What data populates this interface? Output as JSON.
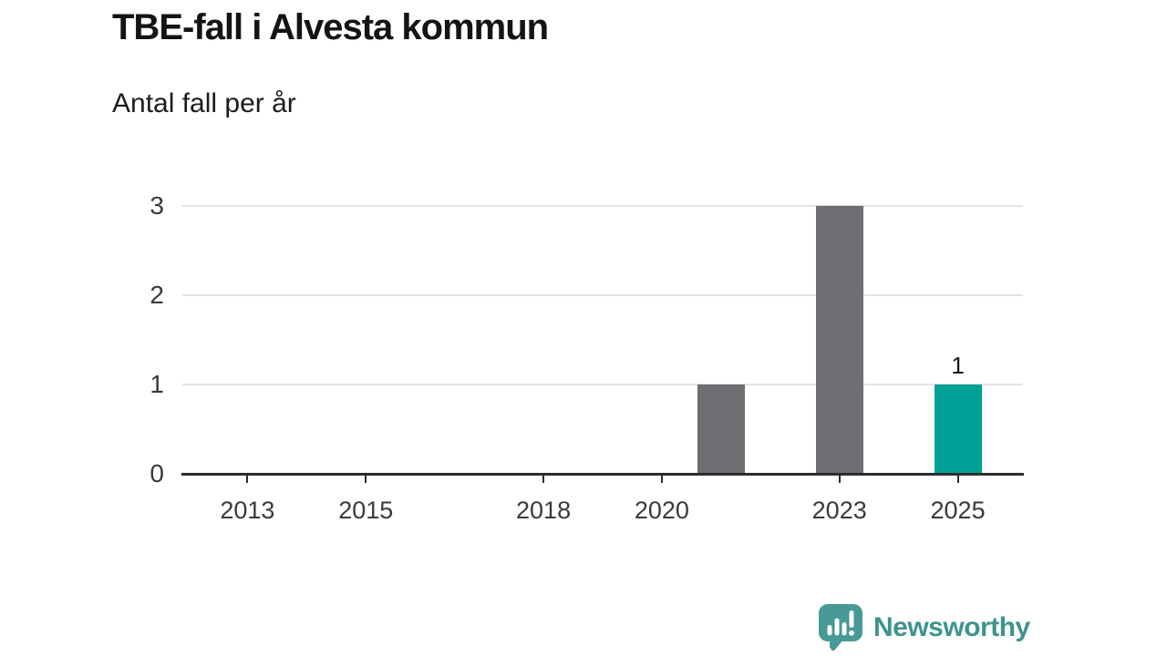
{
  "header": {
    "title": "TBE-fall i Alvesta kommun",
    "subtitle": "Antal fall per år"
  },
  "footer": {
    "brand": "Newsworthy",
    "logo_icon": "newsworthy-speech-bubble-bar-chart-icon"
  },
  "colors": {
    "background": "#ffffff",
    "bar_default": "#6e6e73",
    "bar_highlight": "#00a096",
    "axis": "#2d2d2d",
    "grid": "#e4e4e4",
    "tick_text": "#3a3a3a",
    "title_text": "#141414",
    "brand_teal_text": "#3f938e",
    "brand_bubble": "#479a96"
  },
  "chart_data": {
    "type": "bar",
    "title": "TBE-fall i Alvesta kommun",
    "ylabel": "Antal fall per år",
    "xlabel": "",
    "categories": [
      2012,
      2013,
      2014,
      2015,
      2016,
      2017,
      2018,
      2019,
      2020,
      2021,
      2022,
      2023,
      2024,
      2025
    ],
    "values": [
      0,
      0,
      0,
      0,
      0,
      0,
      0,
      0,
      0,
      1,
      0,
      3,
      0,
      1
    ],
    "x_ticks": [
      2013,
      2015,
      2018,
      2020,
      2023,
      2025
    ],
    "y_ticks": [
      0,
      1,
      2,
      3
    ],
    "ylim": [
      0,
      3
    ],
    "xlim": [
      2011.9,
      2026.1
    ],
    "grid": "horizontal",
    "legend": "none",
    "highlight": {
      "year": 2025,
      "color": "#00a096"
    },
    "data_labels": [
      {
        "x": 2025,
        "text": "1"
      }
    ]
  }
}
